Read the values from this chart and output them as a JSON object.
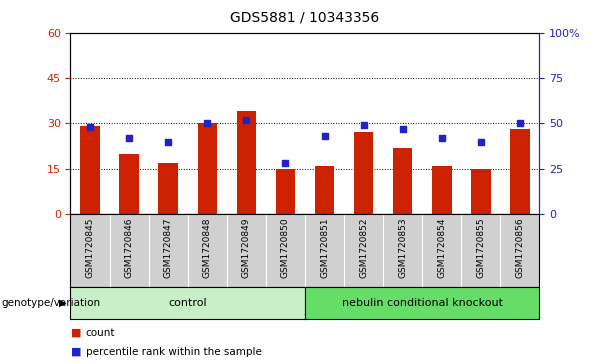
{
  "title": "GDS5881 / 10343356",
  "categories": [
    "GSM1720845",
    "GSM1720846",
    "GSM1720847",
    "GSM1720848",
    "GSM1720849",
    "GSM1720850",
    "GSM1720851",
    "GSM1720852",
    "GSM1720853",
    "GSM1720854",
    "GSM1720855",
    "GSM1720856"
  ],
  "bar_values": [
    29,
    20,
    17,
    30,
    34,
    15,
    16,
    27,
    22,
    16,
    15,
    28
  ],
  "marker_values": [
    48,
    42,
    40,
    50,
    52,
    28,
    43,
    49,
    47,
    42,
    40,
    50
  ],
  "bar_color": "#cc2200",
  "marker_color": "#2222cc",
  "left_ylim": [
    0,
    60
  ],
  "right_ylim": [
    0,
    100
  ],
  "left_yticks": [
    0,
    15,
    30,
    45,
    60
  ],
  "right_yticks": [
    0,
    25,
    50,
    75,
    100
  ],
  "right_yticklabels": [
    "0",
    "25",
    "50",
    "75",
    "100%"
  ],
  "grid_yticks": [
    15,
    30,
    45
  ],
  "control_samples": 6,
  "total_samples": 12,
  "control_label": "control",
  "knockout_label": "nebulin conditional knockout",
  "genotype_label": "genotype/variation",
  "legend_count": "count",
  "legend_percentile": "percentile rank within the sample",
  "title_fontsize": 10,
  "axis_label_color_left": "#cc2200",
  "axis_label_color_right": "#2222cc",
  "bg_color_samples": "#d0d0d0",
  "bg_color_control": "#c8f0c8",
  "bg_color_knockout": "#66dd66"
}
